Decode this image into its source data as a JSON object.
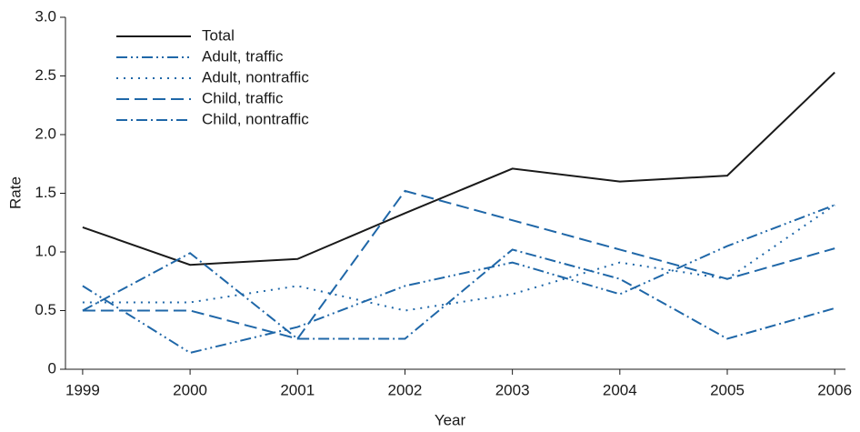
{
  "chart_data": {
    "type": "line",
    "x_label": "Year",
    "y_label": "Rate",
    "x": [
      1999,
      2000,
      2001,
      2002,
      2003,
      2004,
      2005,
      2006
    ],
    "series": [
      {
        "name": "Total",
        "color": "#1a1a1a",
        "dash": "none",
        "values": [
          1.21,
          0.89,
          0.94,
          1.33,
          1.71,
          1.6,
          1.65,
          2.53
        ]
      },
      {
        "name": "Adult, traffic",
        "color": "#1f67a8",
        "dash": "12,4,2,4,2,4",
        "values": [
          0.71,
          0.14,
          0.36,
          0.71,
          0.91,
          0.64,
          1.05,
          1.4
        ]
      },
      {
        "name": "Adult, nontraffic",
        "color": "#1f67a8",
        "dash": "2,6",
        "values": [
          0.57,
          0.57,
          0.71,
          0.5,
          0.64,
          0.91,
          0.77,
          1.4
        ]
      },
      {
        "name": "Child, traffic",
        "color": "#1f67a8",
        "dash": "14,6",
        "values": [
          0.5,
          0.5,
          0.26,
          1.52,
          1.27,
          1.02,
          0.77,
          1.03
        ]
      },
      {
        "name": "Child, nontraffic",
        "color": "#1f67a8",
        "dash": "12,4,2,4",
        "values": [
          0.5,
          0.99,
          0.26,
          0.26,
          1.02,
          0.77,
          0.26,
          0.52
        ]
      }
    ],
    "xlim": [
      1998.84,
      2006.1
    ],
    "xticks": [
      1999,
      2000,
      2001,
      2002,
      2003,
      2004,
      2005,
      2006
    ],
    "ylim": [
      0,
      3.0
    ],
    "yticks": [
      0,
      0.5,
      {
        "value": 1.0,
        "label": "1.0"
      },
      1.5,
      {
        "value": 2.0,
        "label": "2.0"
      },
      2.5,
      {
        "value": 3.0,
        "label": "3.0"
      }
    ],
    "legend": "upper-left"
  }
}
